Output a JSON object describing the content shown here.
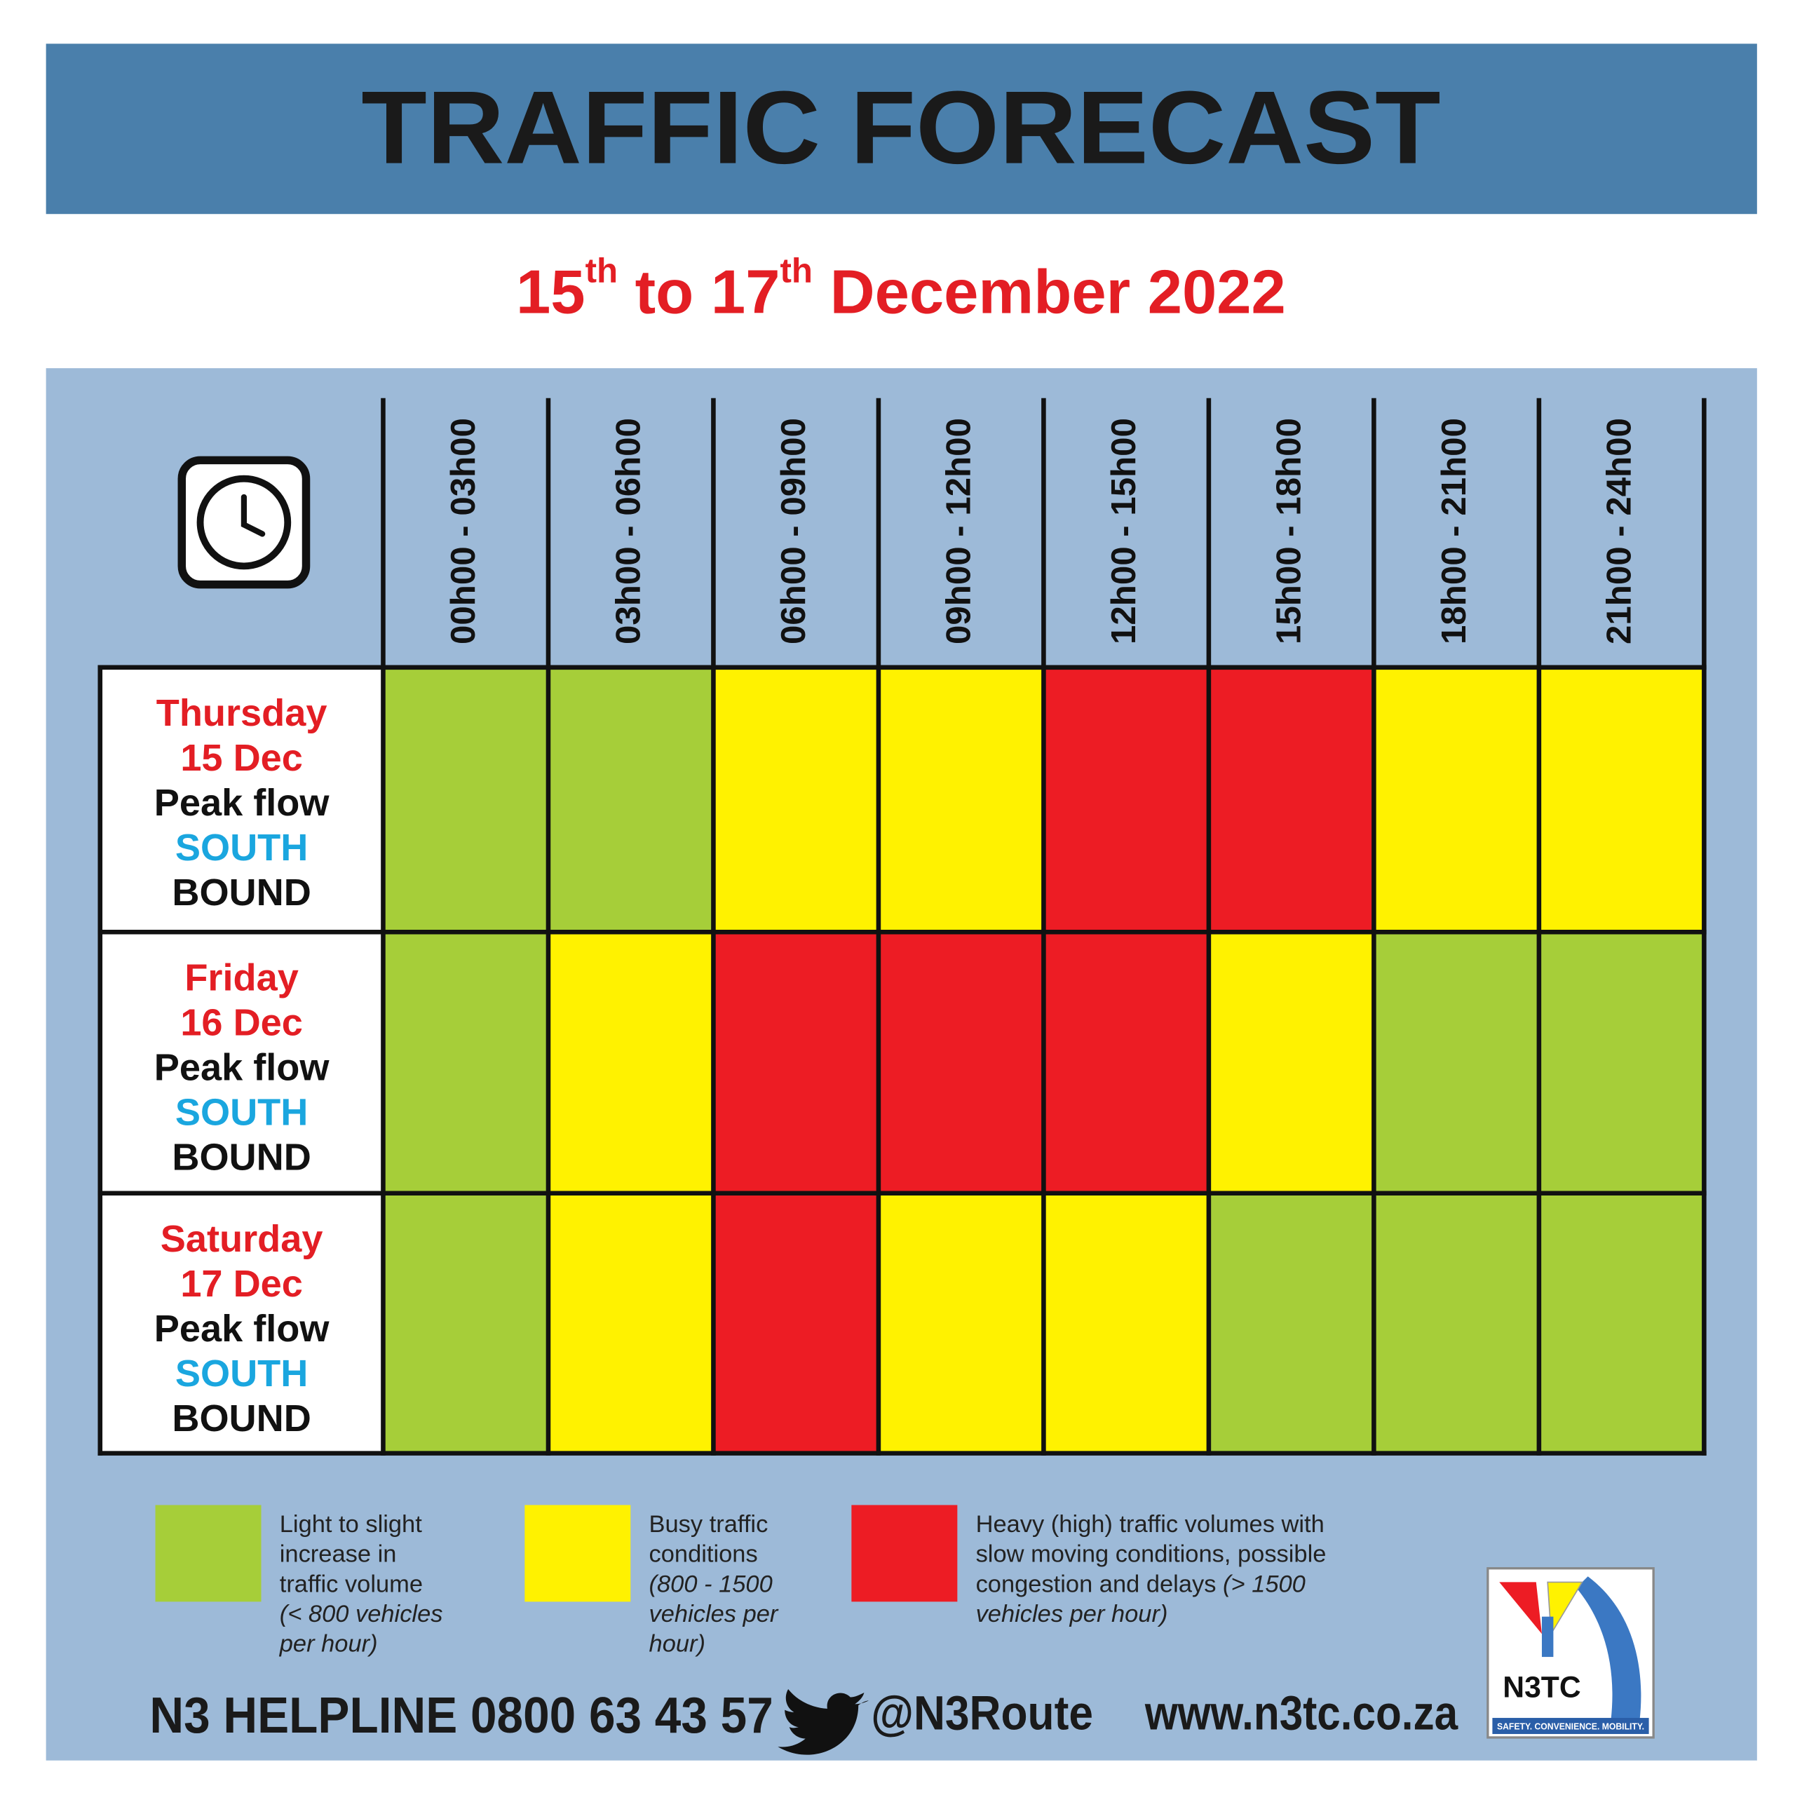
{
  "header": {
    "title": "TRAFFIC FORECAST",
    "subtitle": [
      {
        "text": "15"
      },
      {
        "text": "th",
        "sup": true
      },
      {
        "text": " to  17"
      },
      {
        "text": "th",
        "sup": true
      },
      {
        "text": " December 2022"
      }
    ]
  },
  "table": {
    "columns": [
      "00h00 - 03h00",
      "03h00 - 06h00",
      "06h00 - 09h00",
      "09h00 - 12h00",
      "12h00 - 15h00",
      "15h00 - 18h00",
      "18h00 - 21h00",
      "21h00 - 24h00"
    ],
    "rows": [
      {
        "lines": [
          {
            "text": "Thursday",
            "color": "#e31e24"
          },
          {
            "text": "15 Dec",
            "color": "#e31e24"
          },
          {
            "text": "Peak flow",
            "color": "#111111"
          },
          {
            "text": "SOUTH",
            "color": "#1aa6df"
          },
          {
            "text": "BOUND",
            "color": "#111111"
          }
        ],
        "cells": [
          "#a6ce39",
          "#a6ce39",
          "#fff200",
          "#fff200",
          "#ed1c24",
          "#ed1c24",
          "#fff200",
          "#fff200"
        ]
      },
      {
        "lines": [
          {
            "text": "Friday",
            "color": "#e31e24"
          },
          {
            "text": "16 Dec",
            "color": "#e31e24"
          },
          {
            "text": "Peak flow",
            "color": "#111111"
          },
          {
            "text": "SOUTH",
            "color": "#1aa6df"
          },
          {
            "text": "BOUND",
            "color": "#111111"
          }
        ],
        "cells": [
          "#a6ce39",
          "#fff200",
          "#ed1c24",
          "#ed1c24",
          "#ed1c24",
          "#fff200",
          "#a6ce39",
          "#a6ce39"
        ]
      },
      {
        "lines": [
          {
            "text": "Saturday",
            "color": "#e31e24"
          },
          {
            "text": "17 Dec",
            "color": "#e31e24"
          },
          {
            "text": "Peak flow",
            "color": "#111111"
          },
          {
            "text": "SOUTH",
            "color": "#1aa6df"
          },
          {
            "text": "BOUND",
            "color": "#111111"
          }
        ],
        "cells": [
          "#a6ce39",
          "#fff200",
          "#ed1c24",
          "#fff200",
          "#fff200",
          "#a6ce39",
          "#a6ce39",
          "#a6ce39"
        ]
      }
    ]
  },
  "legend": [
    {
      "color": "#a6ce39",
      "lines": [
        [
          {
            "text": "Light to slight"
          }
        ],
        [
          {
            "text": "increase in"
          }
        ],
        [
          {
            "text": "traffic volume"
          }
        ],
        [
          {
            "text": "(< 800 vehicles",
            "italic": true
          }
        ],
        [
          {
            "text": "per hour)",
            "italic": true
          }
        ]
      ]
    },
    {
      "color": "#fff200",
      "lines": [
        [
          {
            "text": "Busy traffic"
          }
        ],
        [
          {
            "text": "conditions"
          }
        ],
        [
          {
            "text": "(800 - 1500",
            "italic": true
          }
        ],
        [
          {
            "text": "vehicles per",
            "italic": true
          }
        ],
        [
          {
            "text": "hour)",
            "italic": true
          }
        ]
      ]
    },
    {
      "color": "#ed1c24",
      "lines": [
        [
          {
            "text": "Heavy (high) traffic volumes with"
          }
        ],
        [
          {
            "text": "slow moving conditions, possible"
          }
        ],
        [
          {
            "text": "congestion and delays "
          },
          {
            "text": "(> 1500",
            "italic": true
          }
        ],
        [
          {
            "text": "vehicles per hour)",
            "italic": true
          }
        ]
      ]
    }
  ],
  "footer": {
    "helpline": "N3 HELPLINE 0800 63 43 57",
    "twitter": "@N3Route",
    "website": "www.n3tc.co.za"
  },
  "logo": {
    "name": "N3TC",
    "tagline": "SAFETY. CONVENIENCE. MOBILITY."
  }
}
